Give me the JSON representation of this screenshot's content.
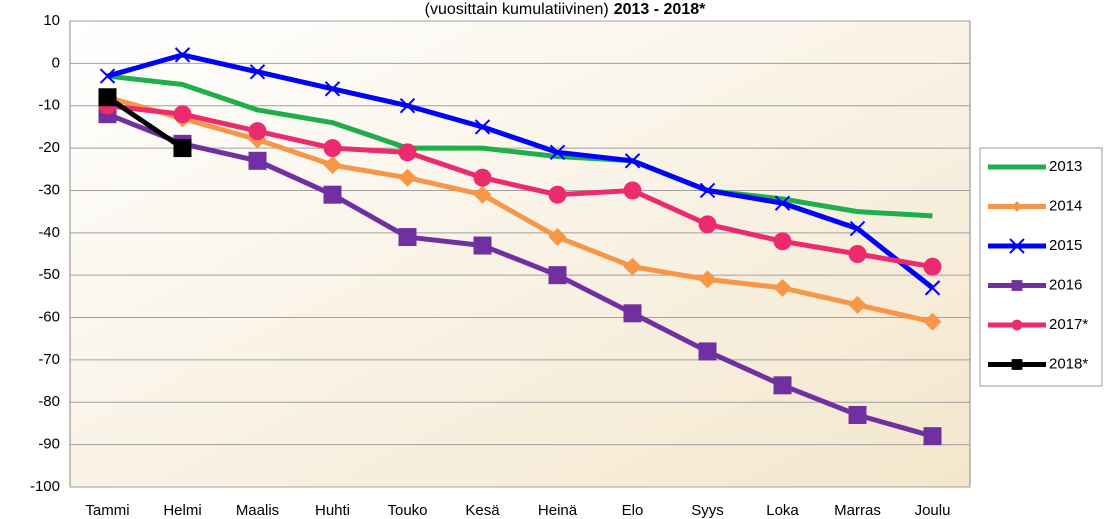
{
  "chart_data": {
    "type": "line",
    "title_parts": [
      "(vuosittain kumulatiivinen)",
      "2013 - 2018*"
    ],
    "categories": [
      "Tammi",
      "Helmi",
      "Maalis",
      "Huhti",
      "Touko",
      "Kesä",
      "Heinä",
      "Elo",
      "Syys",
      "Loka",
      "Marras",
      "Joulu"
    ],
    "series": [
      {
        "name": "2013",
        "color": "#1fae4b",
        "marker": "none",
        "values": [
          -3,
          -5,
          -11,
          -14,
          -20,
          -20,
          -22,
          -23,
          -30,
          -32,
          -35,
          -36
        ]
      },
      {
        "name": "2014",
        "color": "#f79646",
        "marker": "diamond",
        "values": [
          -8,
          -13,
          -18,
          -24,
          -27,
          -31,
          -41,
          -48,
          -51,
          -53,
          -57,
          -61
        ]
      },
      {
        "name": "2015",
        "color": "#0000ff",
        "marker": "x",
        "values": [
          -3,
          2,
          -2,
          -6,
          -10,
          -15,
          -21,
          -23,
          -30,
          -33,
          -39,
          -53
        ]
      },
      {
        "name": "2016",
        "color": "#7030a0",
        "marker": "square",
        "values": [
          -12,
          -19,
          -23,
          -31,
          -41,
          -43,
          -50,
          -59,
          -68,
          -76,
          -83,
          -88
        ]
      },
      {
        "name": "2017*",
        "color": "#ec2a6e",
        "marker": "circle",
        "values": [
          -10,
          -12,
          -16,
          -20,
          -21,
          -27,
          -31,
          -30,
          -38,
          -42,
          -45,
          -48
        ]
      },
      {
        "name": "2018*",
        "color": "#000000",
        "marker": "square",
        "values": [
          -8,
          -20,
          null,
          null,
          null,
          null,
          null,
          null,
          null,
          null,
          null,
          null
        ]
      }
    ],
    "ylim": [
      -100,
      10
    ],
    "yticks": [
      10,
      0,
      -10,
      -20,
      -30,
      -40,
      -50,
      -60,
      -70,
      -80,
      -90,
      -100
    ],
    "grid": true,
    "legend": "right"
  }
}
